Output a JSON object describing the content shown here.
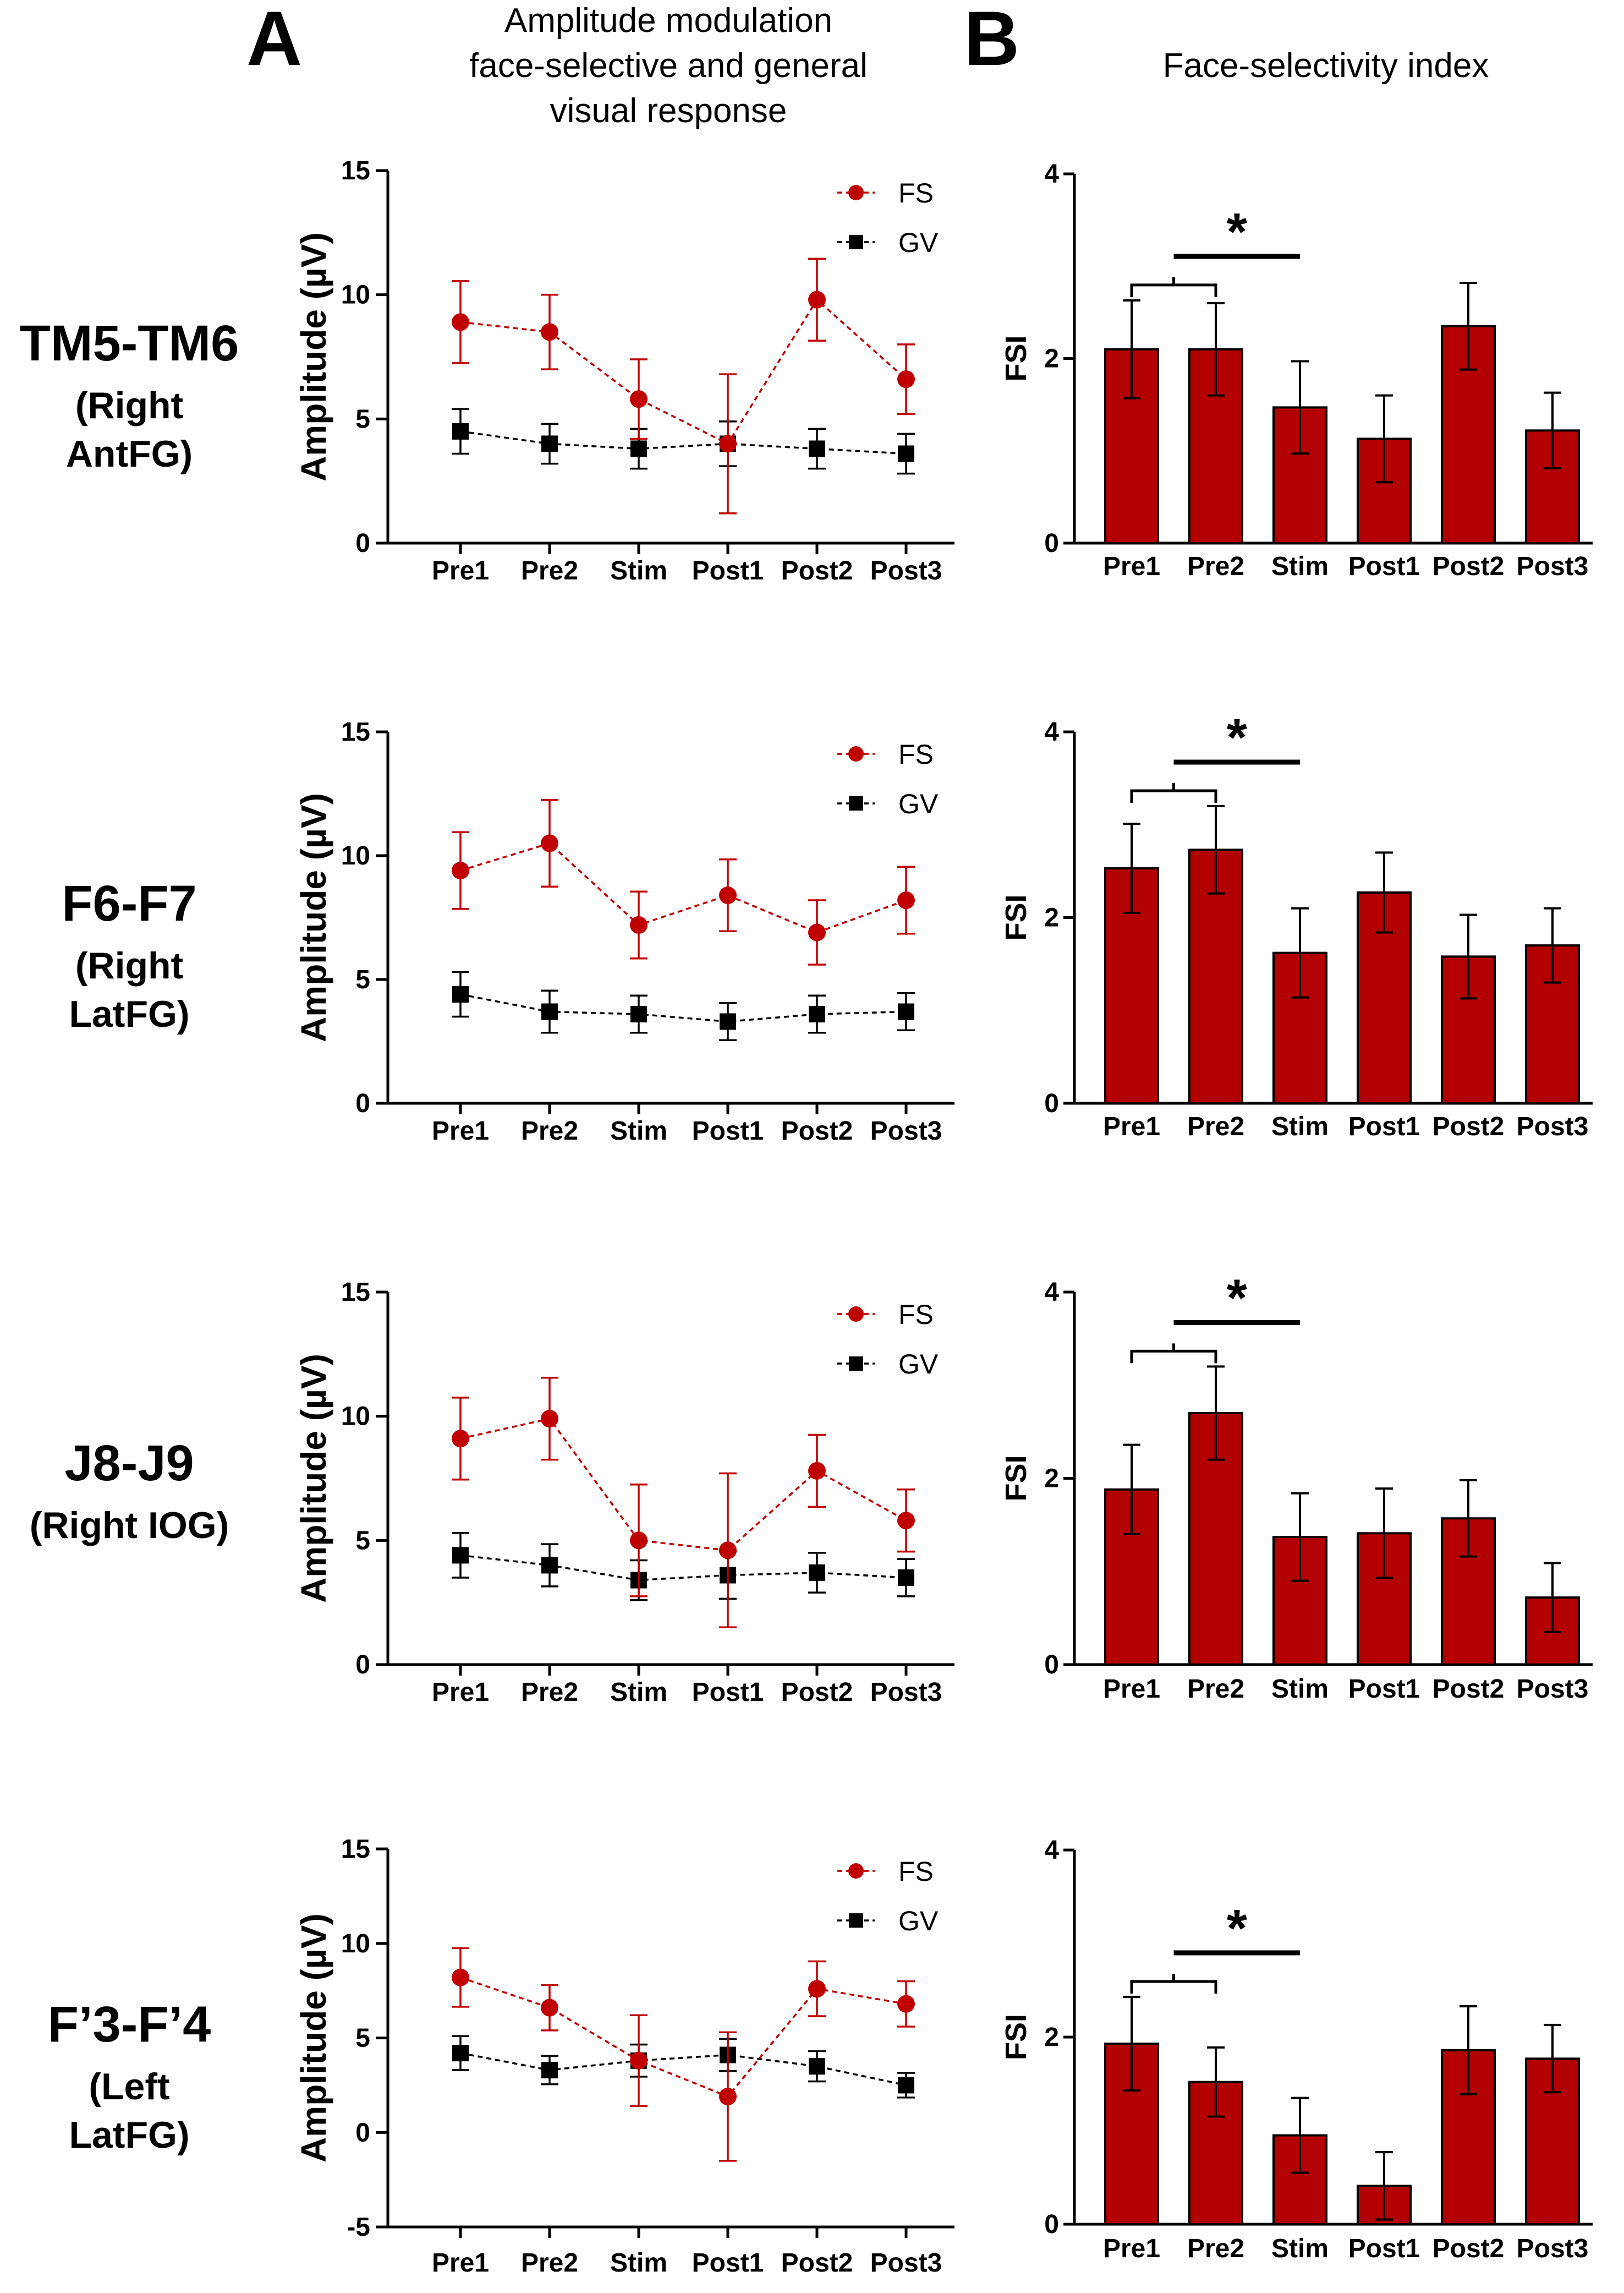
{
  "panel_labels": {
    "a": "A",
    "b": "B"
  },
  "column_titles": {
    "a": [
      "Amplitude modulation",
      "face-selective and general",
      "visual response"
    ],
    "b": "Face-selectivity index"
  },
  "colors": {
    "fs": "#c00000",
    "gv": "#000000",
    "bar_fill": "#b30000",
    "bar_stroke": "#000000"
  },
  "chart_data": [
    {
      "type": "line",
      "row": "TM5-TM6",
      "row_sub": [
        "(Right",
        "AntFG)"
      ],
      "title": "Amplitude modulation face-selective and general visual response",
      "ylabel": "Amplitude (µV)",
      "ylim": [
        0,
        15
      ],
      "yticks": [
        0,
        5,
        10,
        15
      ],
      "categories": [
        "Pre1",
        "Pre2",
        "Stim",
        "Post1",
        "Post2",
        "Post3"
      ],
      "series": [
        {
          "name": "FS",
          "values": [
            8.9,
            8.5,
            5.8,
            4.0,
            9.8,
            6.6
          ],
          "errors": [
            1.65,
            1.5,
            1.6,
            2.8,
            1.65,
            1.4
          ]
        },
        {
          "name": "GV",
          "values": [
            4.5,
            4.0,
            3.8,
            4.0,
            3.8,
            3.6
          ],
          "errors": [
            0.9,
            0.8,
            0.8,
            0.9,
            0.8,
            0.8
          ]
        }
      ]
    },
    {
      "type": "bar",
      "row": "TM5-TM6",
      "title": "Face-selectivity index",
      "ylabel": "FSI",
      "ylim": [
        0,
        4
      ],
      "yticks": [
        0,
        2,
        4
      ],
      "categories": [
        "Pre1",
        "Pre2",
        "Stim",
        "Post1",
        "Post2",
        "Post3"
      ],
      "values": [
        2.1,
        2.1,
        1.47,
        1.13,
        2.35,
        1.22
      ],
      "errors": [
        0.53,
        0.5,
        0.5,
        0.47,
        0.47,
        0.41
      ],
      "significance": "*"
    },
    {
      "type": "line",
      "row": "F6-F7",
      "row_sub": [
        "(Right",
        "LatFG)"
      ],
      "ylabel": "Amplitude (µV)",
      "ylim": [
        0,
        15
      ],
      "yticks": [
        0,
        5,
        10,
        15
      ],
      "categories": [
        "Pre1",
        "Pre2",
        "Stim",
        "Post1",
        "Post2",
        "Post3"
      ],
      "series": [
        {
          "name": "FS",
          "values": [
            9.4,
            10.5,
            7.2,
            8.4,
            6.9,
            8.2
          ],
          "errors": [
            1.55,
            1.75,
            1.35,
            1.45,
            1.3,
            1.35
          ]
        },
        {
          "name": "GV",
          "values": [
            4.4,
            3.7,
            3.6,
            3.3,
            3.6,
            3.7
          ],
          "errors": [
            0.9,
            0.85,
            0.75,
            0.75,
            0.75,
            0.75
          ]
        }
      ]
    },
    {
      "type": "bar",
      "row": "F6-F7",
      "ylabel": "FSI",
      "ylim": [
        0,
        4
      ],
      "yticks": [
        0,
        2,
        4
      ],
      "categories": [
        "Pre1",
        "Pre2",
        "Stim",
        "Post1",
        "Post2",
        "Post3"
      ],
      "values": [
        2.53,
        2.73,
        1.62,
        2.27,
        1.58,
        1.7
      ],
      "errors": [
        0.48,
        0.47,
        0.48,
        0.43,
        0.45,
        0.4
      ],
      "significance": "*"
    },
    {
      "type": "line",
      "row": "J8-J9",
      "row_sub": [
        "(Right IOG)"
      ],
      "ylabel": "Amplitude (µV)",
      "ylim": [
        0,
        15
      ],
      "yticks": [
        0,
        5,
        10,
        15
      ],
      "categories": [
        "Pre1",
        "Pre2",
        "Stim",
        "Post1",
        "Post2",
        "Post3"
      ],
      "series": [
        {
          "name": "FS",
          "values": [
            9.1,
            9.9,
            5.0,
            4.6,
            7.8,
            5.8
          ],
          "errors": [
            1.65,
            1.65,
            2.25,
            3.1,
            1.45,
            1.25
          ]
        },
        {
          "name": "GV",
          "values": [
            4.4,
            4.0,
            3.4,
            3.6,
            3.7,
            3.5
          ],
          "errors": [
            0.9,
            0.85,
            0.8,
            0.95,
            0.8,
            0.75
          ]
        }
      ]
    },
    {
      "type": "bar",
      "row": "J8-J9",
      "ylabel": "FSI",
      "ylim": [
        0,
        4
      ],
      "yticks": [
        0,
        2,
        4
      ],
      "categories": [
        "Pre1",
        "Pre2",
        "Stim",
        "Post1",
        "Post2",
        "Post3"
      ],
      "values": [
        1.88,
        2.7,
        1.37,
        1.41,
        1.57,
        0.72
      ],
      "errors": [
        0.48,
        0.5,
        0.47,
        0.48,
        0.41,
        0.37
      ],
      "significance": "*"
    },
    {
      "type": "line",
      "row": "F’3-F’4",
      "row_sub": [
        "(Left",
        "LatFG)"
      ],
      "ylabel": "Amplitude (µV)",
      "ylim": [
        -5,
        15
      ],
      "yticks": [
        -5,
        0,
        5,
        10,
        15
      ],
      "categories": [
        "Pre1",
        "Pre2",
        "Stim",
        "Post1",
        "Post2",
        "Post3"
      ],
      "series": [
        {
          "name": "FS",
          "values": [
            8.2,
            6.6,
            3.8,
            1.9,
            7.6,
            6.8
          ],
          "errors": [
            1.55,
            1.2,
            2.4,
            3.4,
            1.45,
            1.2
          ]
        },
        {
          "name": "GV",
          "values": [
            4.2,
            3.3,
            3.8,
            4.1,
            3.5,
            2.5
          ],
          "errors": [
            0.9,
            0.75,
            0.85,
            0.85,
            0.8,
            0.65
          ]
        }
      ]
    },
    {
      "type": "bar",
      "row": "F’3-F’4",
      "ylabel": "FSI",
      "ylim": [
        0,
        4
      ],
      "yticks": [
        0,
        2,
        4
      ],
      "categories": [
        "Pre1",
        "Pre2",
        "Stim",
        "Post1",
        "Post2",
        "Post3"
      ],
      "values": [
        1.93,
        1.52,
        0.95,
        0.41,
        1.86,
        1.77
      ],
      "errors": [
        0.5,
        0.37,
        0.4,
        0.36,
        0.47,
        0.36
      ],
      "significance": "*"
    }
  ]
}
